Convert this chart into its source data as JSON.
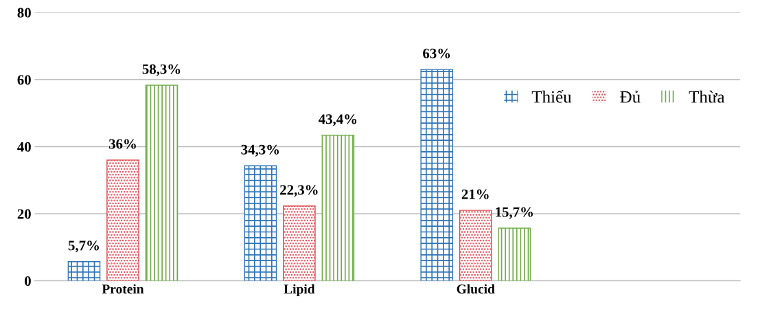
{
  "chart_data": {
    "type": "bar",
    "categories": [
      "Protein",
      "Lipid",
      "Glucid",
      null
    ],
    "series": [
      {
        "name": "Thiếu",
        "color": "#2e75b6",
        "values": [
          5.7,
          34.3,
          63,
          null
        ],
        "value_labels": [
          "5,7%",
          "34,3%",
          "63%",
          null
        ]
      },
      {
        "name": "Đủ",
        "color": "#e0474c",
        "values": [
          36,
          22.3,
          21,
          null
        ],
        "value_labels": [
          "36%",
          "22,3%",
          "21%",
          null
        ]
      },
      {
        "name": "Thừa",
        "color": "#70ad47",
        "values": [
          58.3,
          43.4,
          15.7,
          null
        ],
        "value_labels": [
          "58,3%",
          "43,4%",
          "15,7%",
          null
        ]
      }
    ],
    "ylim": [
      0,
      80
    ],
    "yticks": [
      0,
      20,
      40,
      60,
      80
    ],
    "grid": "y",
    "legend": "top right"
  }
}
